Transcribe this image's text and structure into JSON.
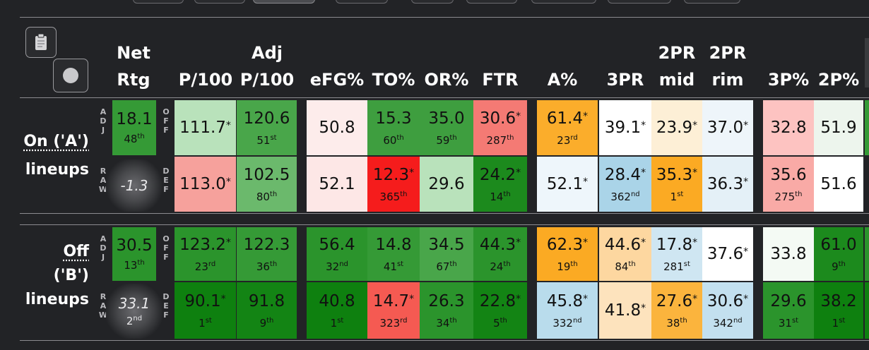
{
  "headers": {
    "net_rtg": [
      "Net",
      "Rtg"
    ],
    "p100": [
      "P/100"
    ],
    "adj_p100": [
      "Adj",
      "P/100"
    ],
    "efg": [
      "eFG%"
    ],
    "to": [
      "TO%"
    ],
    "or": [
      "OR%"
    ],
    "ftr": [
      "FTR"
    ],
    "a": [
      "A%"
    ],
    "threepr": [
      "3PR"
    ],
    "twopr_mid": [
      "2PR",
      "mid"
    ],
    "twopr_rim": [
      "2PR",
      "rim"
    ],
    "threep": [
      "3P%"
    ],
    "twop": [
      "2P%"
    ]
  },
  "side_labels": {
    "adj": [
      "A",
      "D",
      "J"
    ],
    "raw": [
      "R",
      "A",
      "W"
    ],
    "off": [
      "O",
      "F",
      "F"
    ],
    "def": [
      "D",
      "E",
      "F"
    ]
  },
  "groups": [
    {
      "label_line1": "On ('A')",
      "label_line2": "lineups",
      "net_adj": {
        "value": "18.1",
        "rank": "48",
        "suffix": "th"
      },
      "net_raw": {
        "value": "-1.3"
      },
      "off": [
        {
          "value": "111.7",
          "star": "*",
          "color": "#b9e2bb"
        },
        {
          "value": "120.6",
          "rank": "51",
          "suffix": "st",
          "color": "#49a64a"
        },
        {
          "value": "50.8",
          "color": "#fdeceb"
        },
        {
          "value": "15.3",
          "rank": "60",
          "suffix": "th",
          "color": "#3e9e3f"
        },
        {
          "value": "35.0",
          "rank": "59",
          "suffix": "th",
          "color": "#3e9e3f"
        },
        {
          "value": "30.6",
          "star": "*",
          "rank": "287",
          "suffix": "th",
          "color": "#f47a74"
        },
        {
          "value": "61.4",
          "star": "*",
          "rank": "23",
          "suffix": "rd",
          "color": "#fbad2b"
        },
        {
          "value": "39.1",
          "star": "*",
          "color": "#ffffff"
        },
        {
          "value": "23.9",
          "star": "*",
          "color": "#fdefd6"
        },
        {
          "value": "37.0",
          "star": "*",
          "color": "#eef5fa"
        },
        {
          "value": "32.8",
          "color": "#fdc3c1"
        },
        {
          "value": "51.9",
          "color": "#edf5ed"
        }
      ],
      "def": [
        {
          "value": "113.0",
          "star": "*",
          "color": "#f6a19c"
        },
        {
          "value": "102.5",
          "rank": "80",
          "suffix": "th",
          "color": "#6bb96c"
        },
        {
          "value": "52.1",
          "color": "#fde7e6"
        },
        {
          "value": "12.3",
          "star": "*",
          "rank": "365",
          "suffix": "th",
          "color": "#f51c1c"
        },
        {
          "value": "29.6",
          "color": "#b9e2bb"
        },
        {
          "value": "24.2",
          "star": "*",
          "rank": "14",
          "suffix": "th",
          "color": "#1c8a1d"
        },
        {
          "value": "52.1",
          "star": "*",
          "color": "#eef6fb"
        },
        {
          "value": "28.4",
          "star": "*",
          "rank": "362",
          "suffix": "nd",
          "color": "#aad4e8"
        },
        {
          "value": "35.3",
          "star": "*",
          "rank": "1",
          "suffix": "st",
          "color": "#fbaa23"
        },
        {
          "value": "36.3",
          "star": "*",
          "color": "#e4f0f7"
        },
        {
          "value": "35.6",
          "rank": "275",
          "suffix": "th",
          "color": "#f9aaa6"
        },
        {
          "value": "51.6",
          "color": "#ffffff"
        }
      ]
    },
    {
      "label_line1": "Off",
      "label_line2": "('B')",
      "label_line3": "lineups",
      "net_adj": {
        "value": "30.5",
        "rank": "13",
        "suffix": "th"
      },
      "net_raw": {
        "value": "33.1",
        "rank": "2",
        "suffix": "nd"
      },
      "off": [
        {
          "value": "123.2",
          "star": "*",
          "rank": "23",
          "suffix": "rd",
          "color": "#2b942c"
        },
        {
          "value": "122.3",
          "rank": "36",
          "suffix": "th",
          "color": "#359a36"
        },
        {
          "value": "56.4",
          "rank": "32",
          "suffix": "nd",
          "color": "#2b942c"
        },
        {
          "value": "14.8",
          "rank": "41",
          "suffix": "st",
          "color": "#359a36"
        },
        {
          "value": "34.5",
          "rank": "67",
          "suffix": "th",
          "color": "#49a64a"
        },
        {
          "value": "44.3",
          "star": "*",
          "rank": "24",
          "suffix": "th",
          "color": "#2b942c"
        },
        {
          "value": "62.3",
          "star": "*",
          "rank": "19",
          "suffix": "th",
          "color": "#fbaa23"
        },
        {
          "value": "44.6",
          "star": "*",
          "rank": "84",
          "suffix": "th",
          "color": "#fdd7a0"
        },
        {
          "value": "17.8",
          "star": "*",
          "rank": "281",
          "suffix": "st",
          "color": "#cfe6f2"
        },
        {
          "value": "37.6",
          "star": "*",
          "color": "#ffffff"
        },
        {
          "value": "33.8",
          "color": "#f4faf4"
        },
        {
          "value": "61.0",
          "rank": "9",
          "suffix": "th",
          "color": "#1c8a1d"
        }
      ],
      "def": [
        {
          "value": "90.1",
          "star": "*",
          "rank": "1",
          "suffix": "st",
          "color": "#0e800f"
        },
        {
          "value": "91.8",
          "rank": "9",
          "suffix": "th",
          "color": "#138414"
        },
        {
          "value": "40.8",
          "rank": "1",
          "suffix": "st",
          "color": "#0e800f"
        },
        {
          "value": "14.7",
          "star": "*",
          "rank": "323",
          "suffix": "rd",
          "color": "#f55a52"
        },
        {
          "value": "26.3",
          "rank": "34",
          "suffix": "th",
          "color": "#2b942c"
        },
        {
          "value": "22.8",
          "star": "*",
          "rank": "5",
          "suffix": "th",
          "color": "#138414"
        },
        {
          "value": "45.8",
          "star": "*",
          "rank": "332",
          "suffix": "nd",
          "color": "#b9dcec"
        },
        {
          "value": "41.8",
          "star": "*",
          "color": "#fde3bd"
        },
        {
          "value": "27.6",
          "star": "*",
          "rank": "38",
          "suffix": "th",
          "color": "#fbb43d"
        },
        {
          "value": "30.6",
          "star": "*",
          "rank": "342",
          "suffix": "nd",
          "color": "#c3e0ef"
        },
        {
          "value": "29.6",
          "rank": "31",
          "suffix": "st",
          "color": "#2b942c"
        },
        {
          "value": "38.2",
          "rank": "1",
          "suffix": "st",
          "color": "#0e800f"
        }
      ]
    }
  ],
  "icons": {
    "clipboard": "clipboard-icon",
    "circle": "circle-toggle-icon"
  }
}
